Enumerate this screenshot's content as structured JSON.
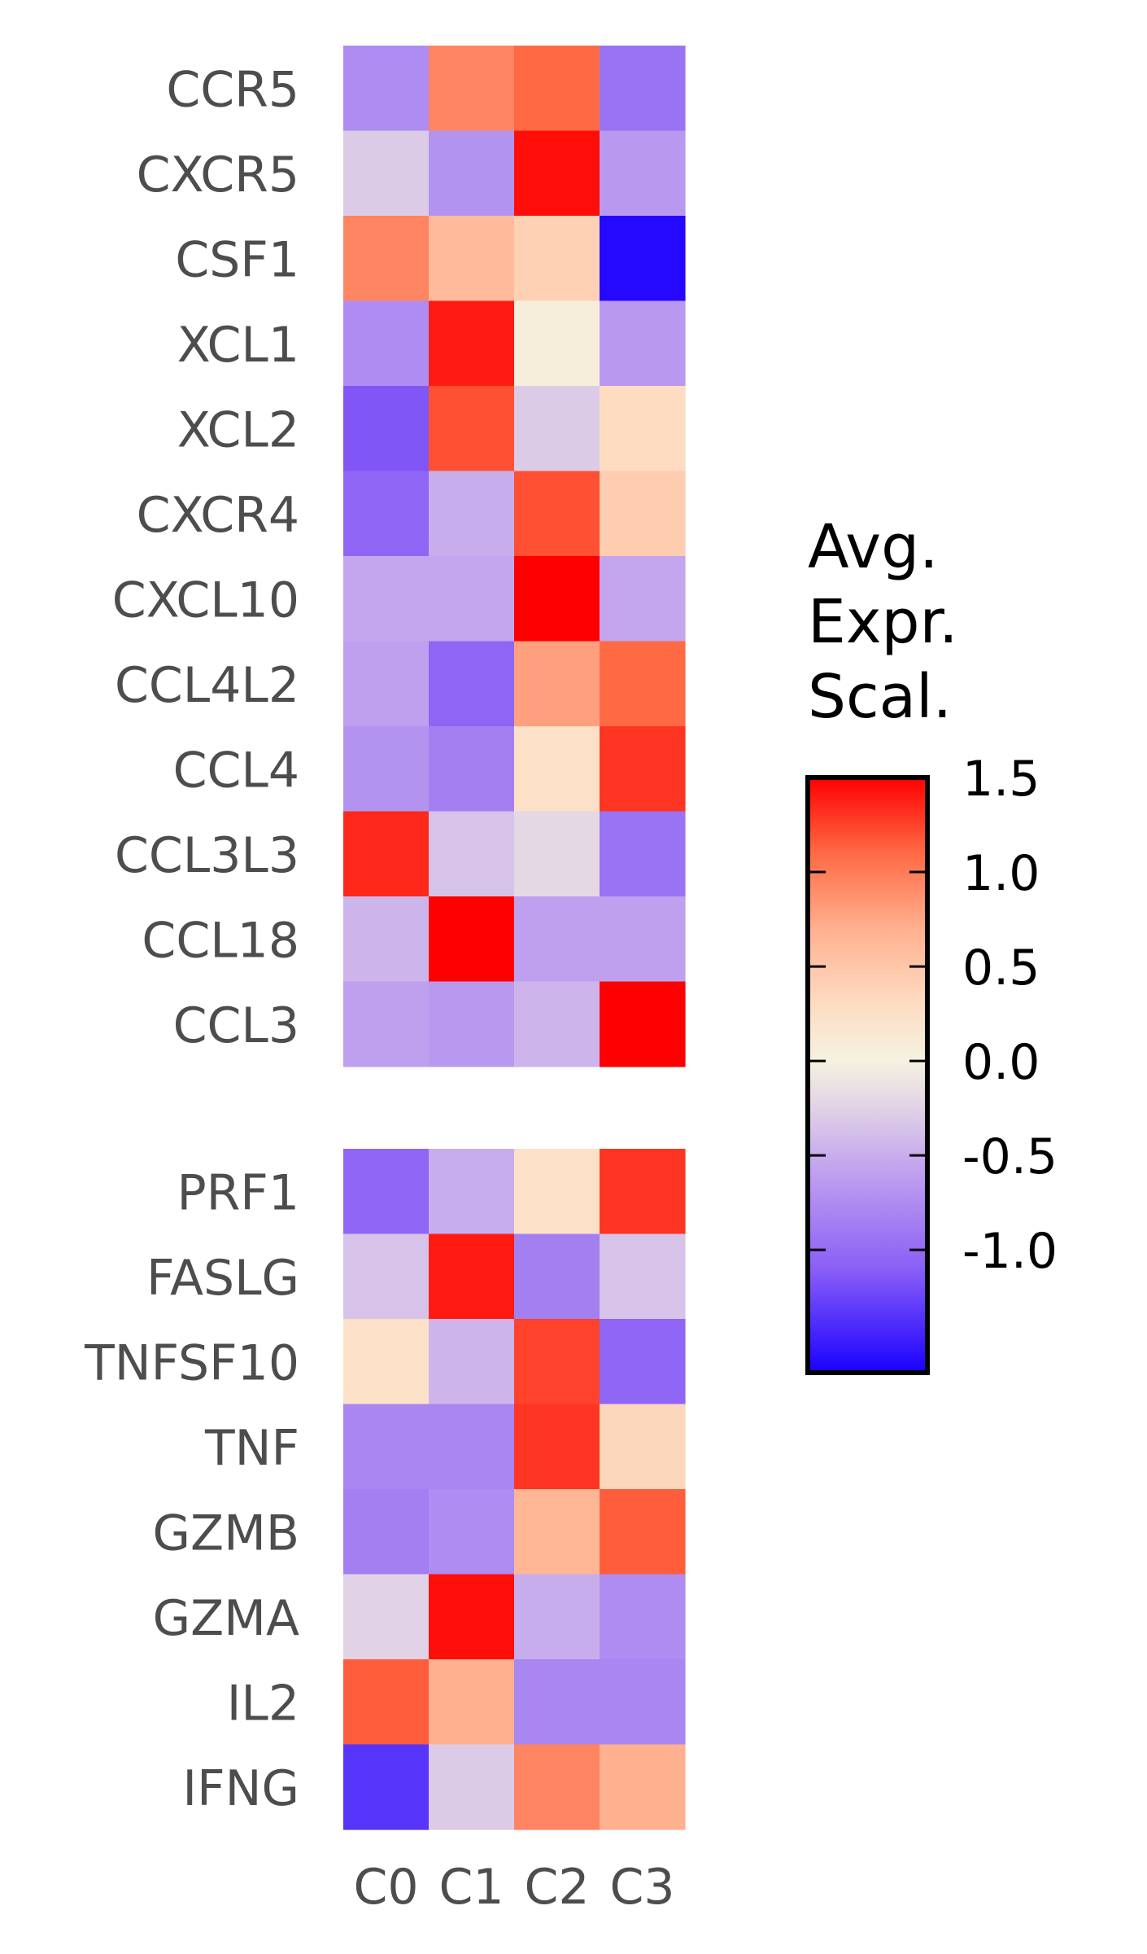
{
  "chart_data": {
    "type": "heatmap",
    "columns": [
      "C0",
      "C1",
      "C2",
      "C3"
    ],
    "groups": [
      {
        "rows": [
          "CCR5",
          "CXCR5",
          "CSF1",
          "XCL1",
          "XCL2",
          "CXCR4",
          "CXCL10",
          "CCL4L2",
          "CCL4",
          "CCL3L3",
          "CCL18",
          "CCL3"
        ],
        "values": [
          [
            -0.75,
            0.95,
            1.1,
            -0.95
          ],
          [
            -0.3,
            -0.7,
            1.45,
            -0.65
          ],
          [
            0.95,
            0.6,
            0.4,
            -1.6
          ],
          [
            -0.75,
            1.4,
            0.05,
            -0.65
          ],
          [
            -1.15,
            1.2,
            -0.3,
            0.3
          ],
          [
            -1.05,
            -0.5,
            1.2,
            0.45
          ],
          [
            -0.55,
            -0.55,
            1.6,
            -0.55
          ],
          [
            -0.6,
            -1.05,
            0.8,
            1.1
          ],
          [
            -0.7,
            -0.85,
            0.25,
            1.3
          ],
          [
            1.35,
            -0.35,
            -0.2,
            -0.95
          ],
          [
            -0.45,
            1.55,
            -0.6,
            -0.6
          ],
          [
            -0.6,
            -0.65,
            -0.45,
            1.6
          ]
        ]
      },
      {
        "rows": [
          "PRF1",
          "FASLG",
          "TNFSF10",
          "TNF",
          "GZMB",
          "GZMA",
          "IL2",
          "IFNG"
        ],
        "values": [
          [
            -1.05,
            -0.5,
            0.25,
            1.3
          ],
          [
            -0.35,
            1.4,
            -0.85,
            -0.35
          ],
          [
            0.25,
            -0.45,
            1.25,
            -1.05
          ],
          [
            -0.8,
            -0.8,
            1.3,
            0.35
          ],
          [
            -0.85,
            -0.75,
            0.65,
            1.15
          ],
          [
            -0.25,
            1.45,
            -0.5,
            -0.75
          ],
          [
            1.15,
            0.7,
            -0.8,
            -0.8
          ],
          [
            -1.35,
            -0.3,
            0.95,
            0.7
          ]
        ]
      }
    ],
    "colorbar": {
      "title": [
        "Avg.",
        "Expr.",
        "Scal."
      ],
      "ticks": [
        1.5,
        1.0,
        0.5,
        0.0,
        -0.5,
        -1.0
      ],
      "tick_labels": [
        "1.5",
        "1.0",
        "0.5",
        "0.0",
        "-0.5",
        "-1.0"
      ],
      "vmin": -1.65,
      "vmax": 1.5,
      "colors": {
        "low": "#1a00ff",
        "mid": "#f5f2e0",
        "high": "#ff0000"
      },
      "gradient_stops": [
        {
          "value": -1.65,
          "color": "#1a00ff"
        },
        {
          "value": -1.1,
          "color": "#8a5ff6"
        },
        {
          "value": -0.55,
          "color": "#c3a6ee"
        },
        {
          "value": -0.25,
          "color": "#e1d2e6"
        },
        {
          "value": 0.0,
          "color": "#f5f2e0"
        },
        {
          "value": 0.3,
          "color": "#fddcc2"
        },
        {
          "value": 0.7,
          "color": "#ffb08f"
        },
        {
          "value": 1.1,
          "color": "#ff6a45"
        },
        {
          "value": 1.5,
          "color": "#ff0000"
        }
      ]
    },
    "legend_position": "right",
    "grid": false
  }
}
